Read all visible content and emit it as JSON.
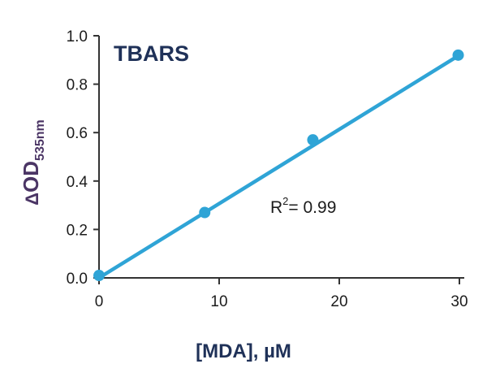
{
  "chart_data": {
    "type": "scatter",
    "title": "TBARS",
    "xlabel": "[MDA], µM",
    "ylabel": {
      "delta": "Δ",
      "main": "OD",
      "subscript": "535nm"
    },
    "xlim": [
      0,
      30
    ],
    "ylim": [
      0.0,
      1.0
    ],
    "x_ticks": [
      0,
      10,
      20,
      30
    ],
    "x_tick_labels": [
      "0",
      "10",
      "20",
      "30"
    ],
    "y_ticks": [
      0.0,
      0.2,
      0.4,
      0.6,
      0.8,
      1.0
    ],
    "y_tick_labels": [
      "0.0",
      "0.2",
      "0.4",
      "0.6",
      "0.8",
      "1.0"
    ],
    "grid": false,
    "series": [
      {
        "x": [
          0,
          8.8,
          17.8,
          29.9
        ],
        "y": [
          0.01,
          0.27,
          0.57,
          0.92
        ]
      }
    ],
    "fit_line": {
      "x": [
        0,
        30
      ],
      "y": [
        0.0,
        0.92
      ]
    },
    "annotation": {
      "base": "R",
      "superscript": "2",
      "rest": "= 0.99"
    },
    "colors": {
      "series": "#2fa4d6",
      "axis": "#333333",
      "title": "#1f3158",
      "ylabel": "#4b3565"
    }
  }
}
